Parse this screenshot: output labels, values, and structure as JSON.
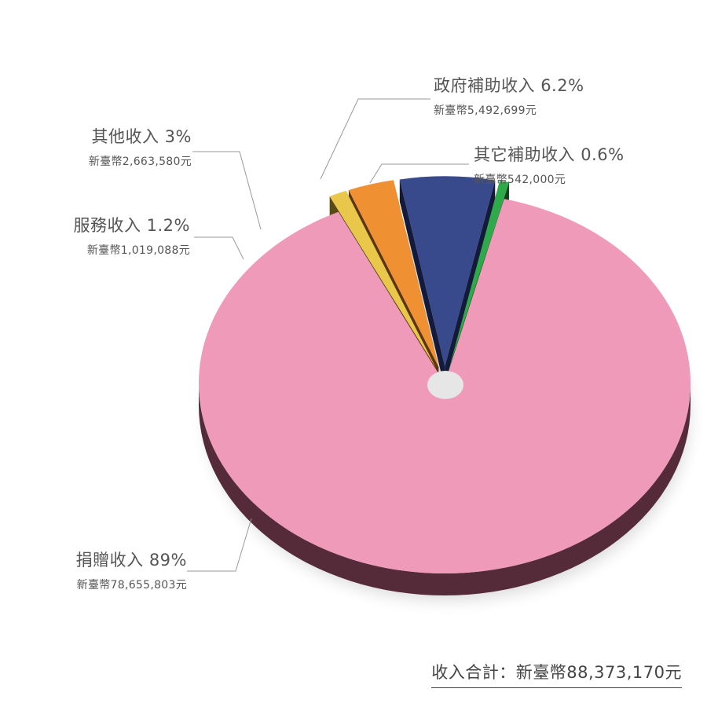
{
  "chart_data": {
    "type": "pie",
    "slices": [
      {
        "label": "捐贈收入",
        "percent_label": "89%",
        "amount_label": "新臺幣78,655,803元",
        "value": 78655803,
        "color": "#f09ab9",
        "side_color": "#552b3a"
      },
      {
        "label": "服務收入",
        "percent_label": "1.2%",
        "amount_label": "新臺幣1,019,088元",
        "value": 1019088,
        "color": "#e9c74a",
        "side_color": "#5a4a16"
      },
      {
        "label": "其他收入",
        "percent_label": "3%",
        "amount_label": "新臺幣2,663,580元",
        "value": 2663580,
        "color": "#ef9132",
        "side_color": "#5b3410"
      },
      {
        "label": "政府補助收入",
        "percent_label": "6.2%",
        "amount_label": "新臺幣5,492,699元",
        "value": 5492699,
        "color": "#394a8c",
        "side_color": "#141a3a"
      },
      {
        "label": "其它補助收入",
        "percent_label": "0.6%",
        "amount_label": "新臺幣542,000元",
        "value": 542000,
        "color": "#2eaa4a",
        "side_color": "#11431d"
      }
    ],
    "total_label": "收入合計：新臺幣88,373,170元",
    "center_hole_color": "#e6e6e6",
    "leader_line_color": "#999999"
  }
}
